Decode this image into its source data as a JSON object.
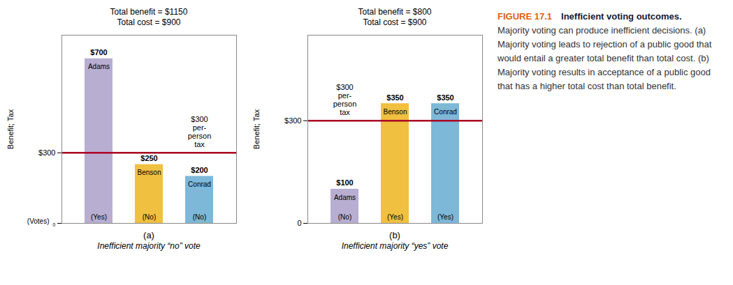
{
  "chart_data": [
    {
      "type": "bar",
      "title": "Total benefit = $1150",
      "subtitle": "Total cost = $900",
      "categories": [
        "Adams",
        "Benson",
        "Conrad"
      ],
      "values": [
        700,
        250,
        200
      ],
      "value_labels": [
        "$700",
        "$250",
        "$200"
      ],
      "colors": [
        "#b8aed2",
        "#f0c040",
        "#7db8d8"
      ],
      "votes": [
        "(Yes)",
        "(No)",
        "(No)"
      ],
      "reference_line": {
        "value": 300,
        "color": "#aa0022"
      },
      "annotations": [
        {
          "text": "$300\nper-\nperson\ntax",
          "y": 300
        },
        {
          "text": "(Votes)"
        }
      ],
      "ylabel": "Benefit; Tax",
      "xlabel": "(a)",
      "caption": "Inefficient majority “no” vote",
      "ylim": [
        0,
        800
      ],
      "yticks": [
        {
          "value": 0,
          "label": "₀"
        },
        {
          "value": 300,
          "label": "$300"
        }
      ],
      "tick_labels": "y",
      "data_labels": true
    },
    {
      "type": "bar",
      "title": "Total benefit = $800",
      "subtitle": "Total cost = $900",
      "categories": [
        "Adams",
        "Benson",
        "Conrad"
      ],
      "values": [
        100,
        350,
        350
      ],
      "value_labels": [
        "$100",
        "$350",
        "$350"
      ],
      "colors": [
        "#b8aed2",
        "#f0c040",
        "#7db8d8"
      ],
      "votes": [
        "(No)",
        "(Yes)",
        "(Yes)"
      ],
      "reference_line": {
        "value": 300,
        "color": "#aa0022"
      },
      "annotations": [
        {
          "text": "$300\nper-\nperson\ntax",
          "y": 300
        }
      ],
      "ylabel": "Benefit; Tax",
      "xlabel": "(b)",
      "caption": "Inefficient majority “yes” vote",
      "ylim": [
        0,
        550
      ],
      "yticks": [
        0,
        {
          "value": 300,
          "label": "$300"
        }
      ],
      "tick_labels": "y",
      "data_labels": true
    }
  ],
  "figure_caption": {
    "label": "FIGURE 17.1",
    "color": "#e06010",
    "title": "Inefficient voting outcomes.",
    "text": "Majority voting can produce inefficient decisions. (a) Majority voting leads to rejection of a public good that would entail a greater total benefit than total cost. (b) Majority voting results in acceptance of a public good that has a higher total cost than total benefit."
  }
}
